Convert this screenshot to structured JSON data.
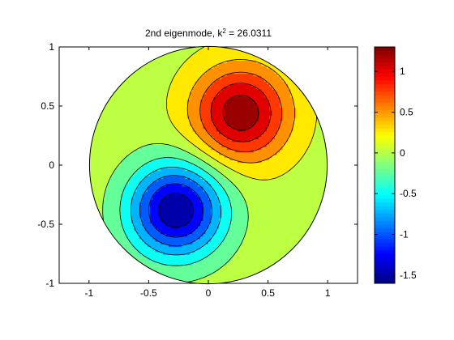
{
  "chart_data": {
    "type": "contour",
    "title": {
      "prefix": "2nd eigenmode, k",
      "sup": "2",
      "suffix": " = 26.0311"
    },
    "xlim": [
      -1.25,
      1.25
    ],
    "ylim": [
      -1,
      1
    ],
    "xticks": [
      {
        "value": -1,
        "label": "-1"
      },
      {
        "value": -0.5,
        "label": "-0.5"
      },
      {
        "value": 0,
        "label": "0"
      },
      {
        "value": 0.5,
        "label": "0.5"
      },
      {
        "value": 1,
        "label": "1"
      }
    ],
    "yticks": [
      {
        "value": -1,
        "label": "-1"
      },
      {
        "value": -0.5,
        "label": "-0.5"
      },
      {
        "value": 0,
        "label": "0"
      },
      {
        "value": 0.5,
        "label": "0.5"
      },
      {
        "value": 1,
        "label": "1"
      }
    ],
    "domain": "unit disk",
    "mode": {
      "k2": 26.0311,
      "max_value": 1.27,
      "max_at": [
        0.27,
        0.44
      ],
      "min_value": -1.6,
      "min_at": [
        -0.27,
        -0.38
      ]
    },
    "colormap": "jet",
    "grid": false,
    "colorbar": {
      "position": "right",
      "clim": [
        -1.6,
        1.3
      ],
      "ticks": [
        {
          "value": 1,
          "label": "1"
        },
        {
          "value": 0.5,
          "label": "0.5"
        },
        {
          "value": 0,
          "label": "0"
        },
        {
          "value": -0.5,
          "label": "-0.5"
        },
        {
          "value": -1,
          "label": "-1"
        },
        {
          "value": -1.5,
          "label": "-1.5"
        }
      ]
    }
  }
}
